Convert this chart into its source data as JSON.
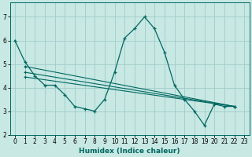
{
  "xlabel": "Humidex (Indice chaleur)",
  "bg_color": "#c8e8e4",
  "grid_color": "#a0ccc8",
  "line_color": "#006860",
  "xlim": [
    -0.5,
    23.5
  ],
  "ylim": [
    2.0,
    7.6
  ],
  "yticks": [
    2,
    3,
    4,
    5,
    6,
    7
  ],
  "xticks": [
    0,
    1,
    2,
    3,
    4,
    5,
    6,
    7,
    8,
    9,
    10,
    11,
    12,
    13,
    14,
    15,
    16,
    17,
    18,
    19,
    20,
    21,
    22,
    23
  ],
  "main_x": [
    0,
    1,
    2,
    3,
    4,
    5,
    6,
    7,
    8,
    9,
    10,
    11,
    12,
    13,
    14,
    15,
    16,
    17,
    18,
    19,
    20,
    21,
    22
  ],
  "main_y": [
    6.0,
    5.1,
    4.5,
    4.1,
    4.1,
    3.7,
    3.2,
    3.1,
    3.0,
    3.5,
    4.65,
    6.1,
    6.5,
    7.0,
    6.5,
    5.5,
    4.1,
    3.5,
    3.0,
    2.4,
    3.3,
    3.2,
    3.2
  ],
  "trend_lines": [
    {
      "x": [
        1,
        22
      ],
      "y": [
        4.9,
        3.2
      ]
    },
    {
      "x": [
        1,
        22
      ],
      "y": [
        4.65,
        3.2
      ]
    },
    {
      "x": [
        1,
        22
      ],
      "y": [
        4.45,
        3.2
      ]
    }
  ]
}
